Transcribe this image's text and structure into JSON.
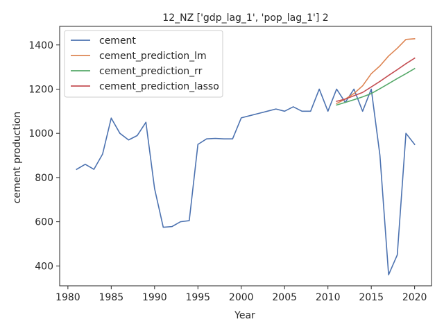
{
  "chart_data": {
    "type": "line",
    "title": "12_NZ ['gdp_lag_1', 'pop_lag_1'] 2",
    "xlabel": "Year",
    "ylabel": "cement production",
    "xlim": [
      1979.05,
      2021.95
    ],
    "ylim": [
      310,
      1484
    ],
    "xticks": [
      1980,
      1985,
      1990,
      1995,
      2000,
      2005,
      2010,
      2015,
      2020
    ],
    "yticks": [
      400,
      600,
      800,
      1000,
      1200,
      1400
    ],
    "grid": false,
    "legend_position": "top-left",
    "series": [
      {
        "name": "cement",
        "color": "#4c72b0",
        "x": [
          1981,
          1982,
          1983,
          1984,
          1985,
          1986,
          1987,
          1988,
          1989,
          1990,
          1991,
          1992,
          1993,
          1994,
          1995,
          1996,
          1997,
          1998,
          1999,
          2000,
          2001,
          2002,
          2003,
          2004,
          2005,
          2006,
          2007,
          2008,
          2009,
          2010,
          2011,
          2012,
          2013,
          2014,
          2015,
          2016,
          2017,
          2018,
          2019,
          2020
        ],
        "values": [
          837,
          860,
          837,
          906,
          1069,
          1000,
          970,
          990,
          1050,
          750,
          575,
          578,
          600,
          605,
          950,
          975,
          977,
          975,
          975,
          1070,
          1080,
          1090,
          1100,
          1110,
          1100,
          1120,
          1100,
          1100,
          1200,
          1100,
          1200,
          1140,
          1200,
          1100,
          1200,
          900,
          360,
          450,
          1000,
          950
        ]
      },
      {
        "name": "cement_prediction_lm",
        "color": "#dd8452",
        "x": [
          2011,
          2012,
          2013,
          2014,
          2015,
          2016,
          2017,
          2018,
          2019,
          2020
        ],
        "values": [
          1135,
          1155,
          1180,
          1215,
          1270,
          1305,
          1350,
          1385,
          1425,
          1428
        ]
      },
      {
        "name": "cement_prediction_rr",
        "color": "#55a868",
        "x": [
          2011,
          2012,
          2013,
          2014,
          2015,
          2016,
          2017,
          2018,
          2019,
          2020
        ],
        "values": [
          1128,
          1140,
          1152,
          1165,
          1180,
          1202,
          1225,
          1248,
          1270,
          1293
        ]
      },
      {
        "name": "cement_prediction_lasso",
        "color": "#c44e52",
        "x": [
          2011,
          2012,
          2013,
          2014,
          2015,
          2016,
          2017,
          2018,
          2019,
          2020
        ],
        "values": [
          1145,
          1155,
          1170,
          1185,
          1210,
          1235,
          1262,
          1288,
          1315,
          1340
        ]
      }
    ]
  }
}
